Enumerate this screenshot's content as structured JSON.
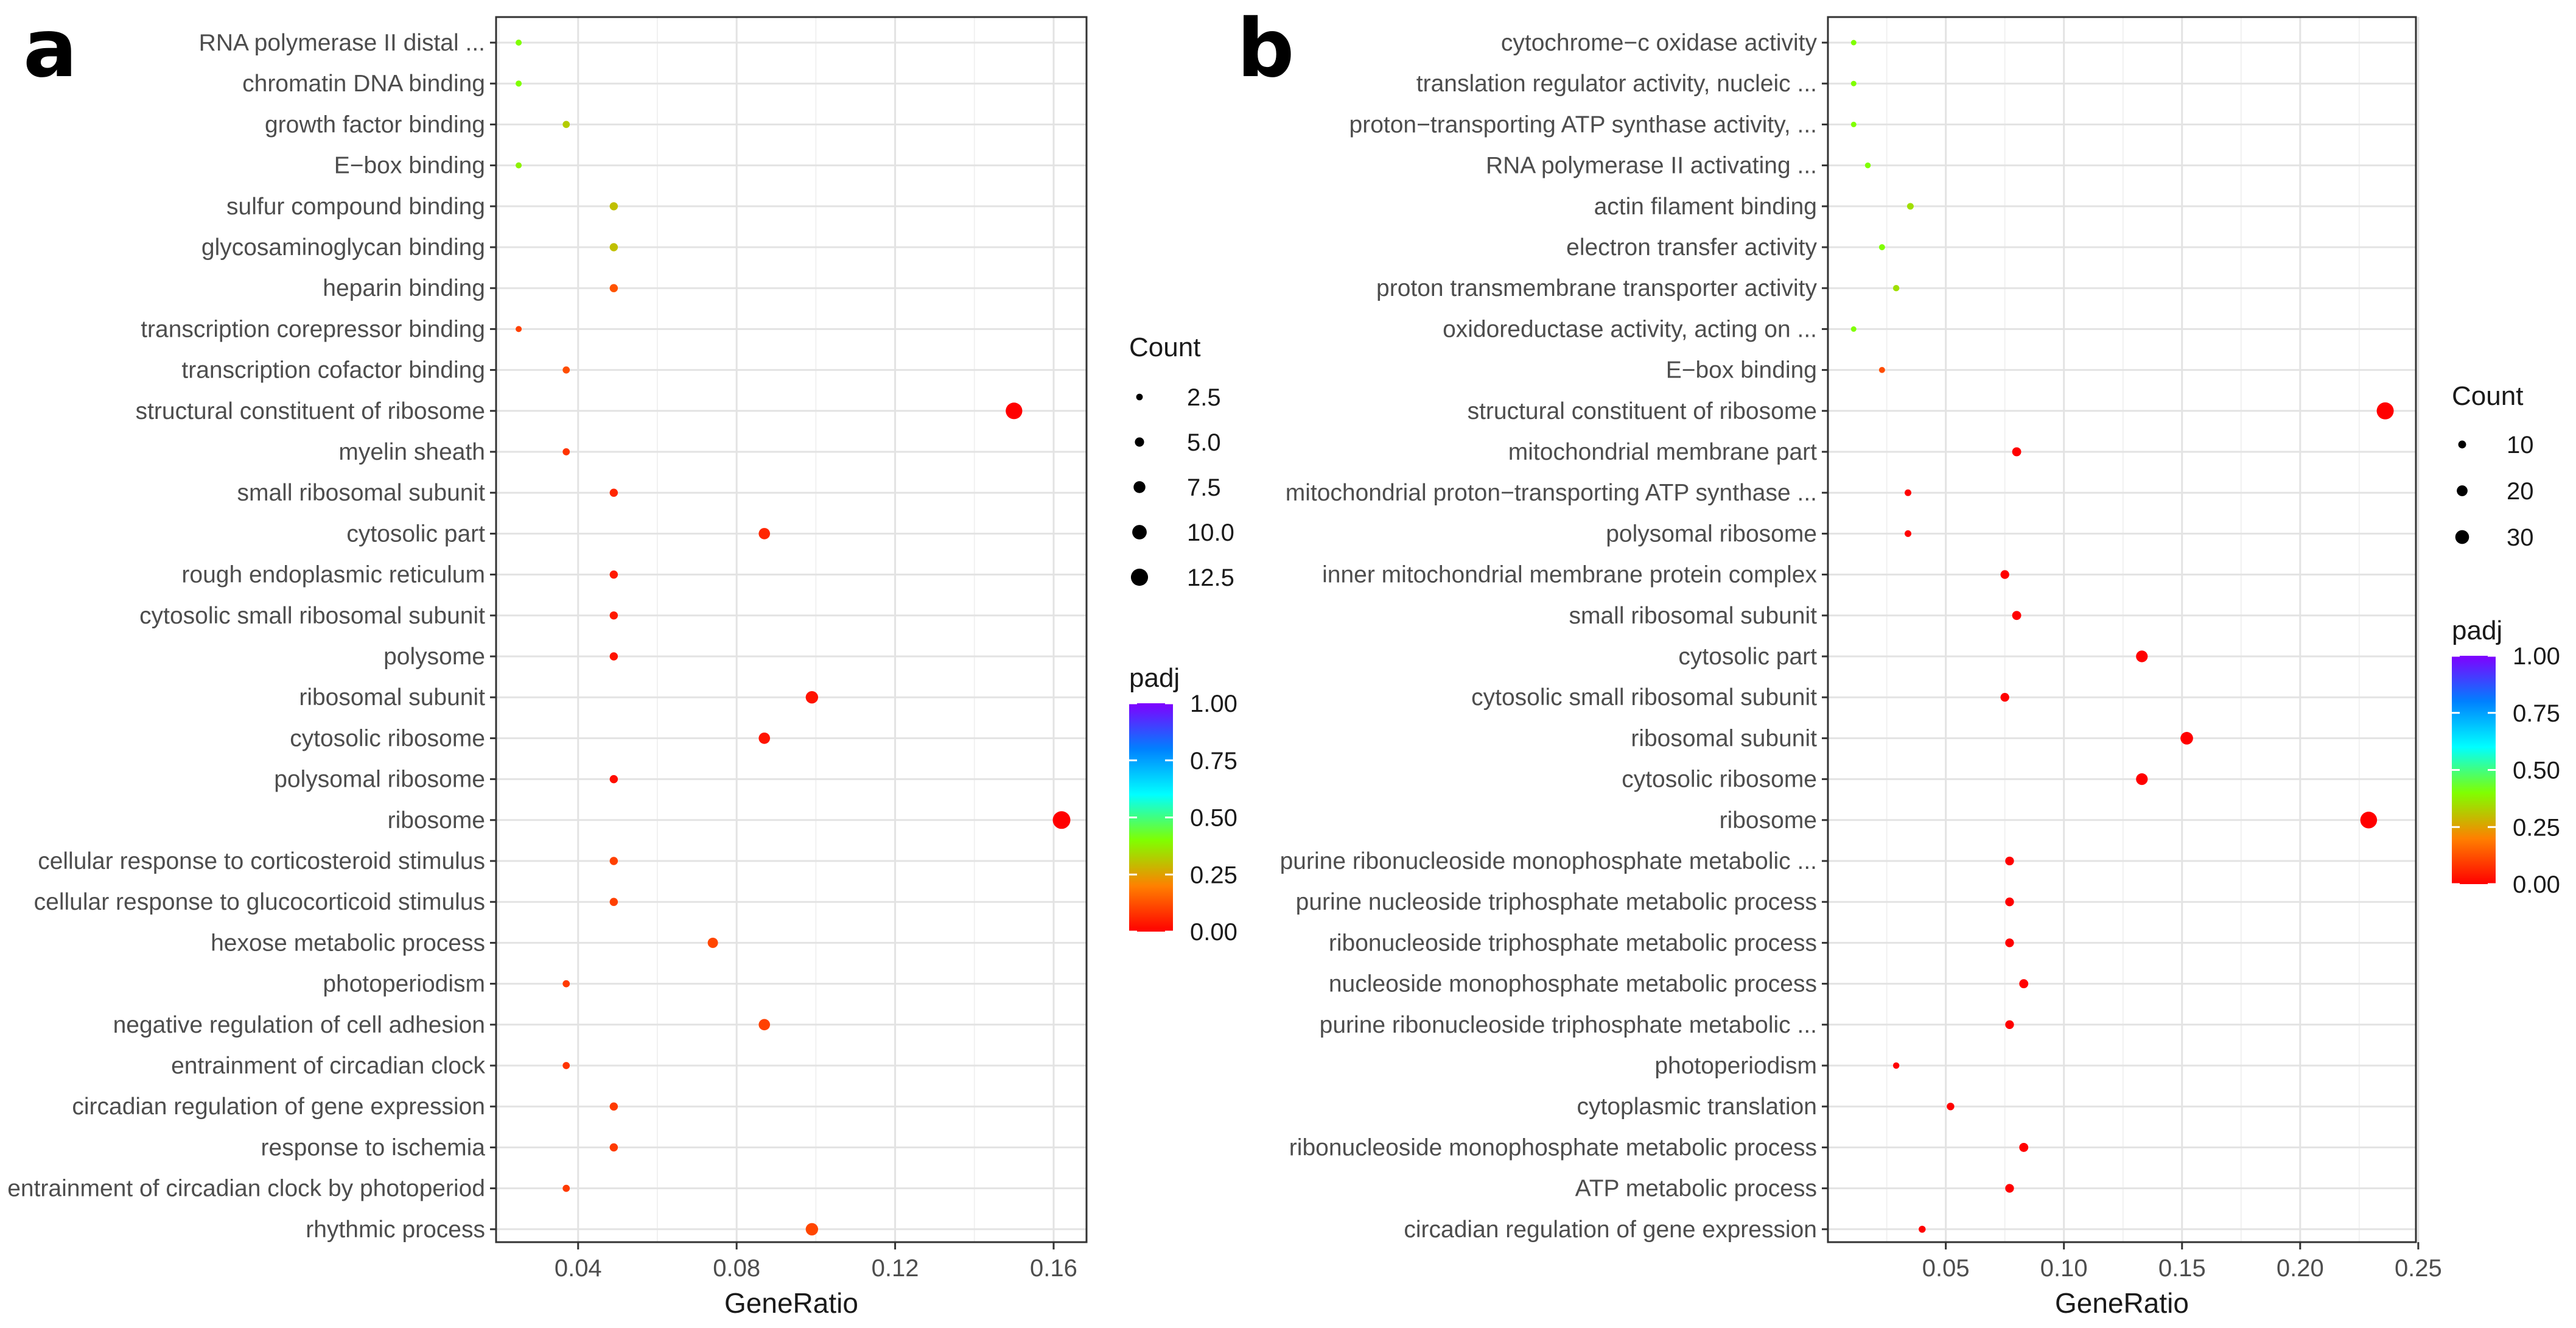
{
  "colors": {
    "padj_low": "#ff0000",
    "padj_q1": "#ff8000",
    "padj_q2": "#80ff00",
    "padj_mid": "#00ffff",
    "padj_q3": "#0080ff",
    "padj_high": "#8000ff"
  },
  "chart_data": [
    {
      "type": "scatter",
      "panel_label": "a",
      "xlabel": "GeneRatio",
      "xlim": [
        0.0193,
        0.1683
      ],
      "xticks": [
        0.04,
        0.08,
        0.12,
        0.16
      ],
      "xtick_labels": [
        "0.04",
        "0.08",
        "0.12",
        "0.16"
      ],
      "size_legend": {
        "title": "Count",
        "values": [
          2.5,
          5.0,
          7.5,
          10.0,
          12.5
        ],
        "labels": [
          "2.5",
          "5.0",
          "7.5",
          "10.0",
          "12.5"
        ]
      },
      "color_legend": {
        "title": "padj",
        "ticks": [
          1.0,
          0.75,
          0.5,
          0.25,
          0.0
        ],
        "labels": [
          "1.00",
          "0.75",
          "0.50",
          "0.25",
          "0.00"
        ]
      },
      "terms": [
        {
          "label": "RNA polymerase II distal ...",
          "gene_ratio": 0.025,
          "count": 2,
          "padj": 0.4
        },
        {
          "label": "chromatin DNA binding",
          "gene_ratio": 0.025,
          "count": 2,
          "padj": 0.4
        },
        {
          "label": "growth factor binding",
          "gene_ratio": 0.037,
          "count": 3,
          "padj": 0.32
        },
        {
          "label": "E−box binding",
          "gene_ratio": 0.025,
          "count": 2,
          "padj": 0.38
        },
        {
          "label": "sulfur compound binding",
          "gene_ratio": 0.049,
          "count": 4,
          "padj": 0.3
        },
        {
          "label": "glycosaminoglycan binding",
          "gene_ratio": 0.049,
          "count": 4,
          "padj": 0.3
        },
        {
          "label": "heparin binding",
          "gene_ratio": 0.049,
          "count": 4,
          "padj": 0.13
        },
        {
          "label": "transcription corepressor binding",
          "gene_ratio": 0.025,
          "count": 2,
          "padj": 0.1
        },
        {
          "label": "transcription cofactor binding",
          "gene_ratio": 0.037,
          "count": 3,
          "padj": 0.12
        },
        {
          "label": "structural constituent of ribosome",
          "gene_ratio": 0.15,
          "count": 12,
          "padj": 0.0
        },
        {
          "label": "myelin sheath",
          "gene_ratio": 0.037,
          "count": 3,
          "padj": 0.08
        },
        {
          "label": "small ribosomal subunit",
          "gene_ratio": 0.049,
          "count": 4,
          "padj": 0.06
        },
        {
          "label": "cytosolic part",
          "gene_ratio": 0.087,
          "count": 7,
          "padj": 0.06
        },
        {
          "label": "rough endoplasmic reticulum",
          "gene_ratio": 0.049,
          "count": 4,
          "padj": 0.04
        },
        {
          "label": "cytosolic small ribosomal subunit",
          "gene_ratio": 0.049,
          "count": 4,
          "padj": 0.04
        },
        {
          "label": "polysome",
          "gene_ratio": 0.049,
          "count": 4,
          "padj": 0.03
        },
        {
          "label": "ribosomal subunit",
          "gene_ratio": 0.099,
          "count": 8,
          "padj": 0.03
        },
        {
          "label": "cytosolic ribosome",
          "gene_ratio": 0.087,
          "count": 7,
          "padj": 0.03
        },
        {
          "label": "polysomal ribosome",
          "gene_ratio": 0.049,
          "count": 4,
          "padj": 0.02
        },
        {
          "label": "ribosome",
          "gene_ratio": 0.162,
          "count": 13,
          "padj": 0.0
        },
        {
          "label": "cellular response to corticosteroid stimulus",
          "gene_ratio": 0.049,
          "count": 4,
          "padj": 0.1
        },
        {
          "label": "cellular response to glucocorticoid stimulus",
          "gene_ratio": 0.049,
          "count": 4,
          "padj": 0.1
        },
        {
          "label": "hexose metabolic process",
          "gene_ratio": 0.074,
          "count": 6,
          "padj": 0.11
        },
        {
          "label": "photoperiodism",
          "gene_ratio": 0.037,
          "count": 3,
          "padj": 0.09
        },
        {
          "label": "negative regulation of cell adhesion",
          "gene_ratio": 0.087,
          "count": 7,
          "padj": 0.1
        },
        {
          "label": "entrainment of circadian clock",
          "gene_ratio": 0.037,
          "count": 3,
          "padj": 0.08
        },
        {
          "label": "circadian regulation of gene expression",
          "gene_ratio": 0.049,
          "count": 4,
          "padj": 0.09
        },
        {
          "label": "response to ischemia",
          "gene_ratio": 0.049,
          "count": 4,
          "padj": 0.09
        },
        {
          "label": "entrainment of circadian clock by photoperiod",
          "gene_ratio": 0.037,
          "count": 3,
          "padj": 0.09
        },
        {
          "label": "rhythmic process",
          "gene_ratio": 0.099,
          "count": 8,
          "padj": 0.11
        }
      ]
    },
    {
      "type": "scatter",
      "panel_label": "b",
      "xlabel": "GeneRatio",
      "xlim": [
        0.0001,
        0.249
      ],
      "xticks": [
        0.05,
        0.1,
        0.15,
        0.2,
        0.25
      ],
      "xtick_labels": [
        "0.05",
        "0.10",
        "0.15",
        "0.20",
        "0.25"
      ],
      "size_legend": {
        "title": "Count",
        "values": [
          10,
          20,
          30
        ],
        "labels": [
          "10",
          "20",
          "30"
        ]
      },
      "color_legend": {
        "title": "padj",
        "ticks": [
          1.0,
          0.75,
          0.5,
          0.25,
          0.0
        ],
        "labels": [
          "1.00",
          "0.75",
          "0.50",
          "0.25",
          "0.00"
        ]
      },
      "terms": [
        {
          "label": "cytochrome−c oxidase activity",
          "gene_ratio": 0.011,
          "count": 2,
          "padj": 0.4
        },
        {
          "label": "translation regulator activity, nucleic ...",
          "gene_ratio": 0.011,
          "count": 2,
          "padj": 0.4
        },
        {
          "label": "proton−transporting ATP synthase activity, ...",
          "gene_ratio": 0.011,
          "count": 2,
          "padj": 0.4
        },
        {
          "label": "RNA polymerase II activating ...",
          "gene_ratio": 0.017,
          "count": 3,
          "padj": 0.4
        },
        {
          "label": "actin filament binding",
          "gene_ratio": 0.035,
          "count": 6,
          "padj": 0.35
        },
        {
          "label": "electron transfer activity",
          "gene_ratio": 0.023,
          "count": 4,
          "padj": 0.4
        },
        {
          "label": "proton transmembrane transporter activity",
          "gene_ratio": 0.029,
          "count": 5,
          "padj": 0.35
        },
        {
          "label": "oxidoreductase activity, acting on ...",
          "gene_ratio": 0.011,
          "count": 2,
          "padj": 0.4
        },
        {
          "label": "E−box binding",
          "gene_ratio": 0.023,
          "count": 4,
          "padj": 0.12
        },
        {
          "label": "structural constituent of ribosome",
          "gene_ratio": 0.236,
          "count": 41,
          "padj": 0.0
        },
        {
          "label": "mitochondrial membrane part",
          "gene_ratio": 0.08,
          "count": 14,
          "padj": 0.0
        },
        {
          "label": "mitochondrial proton−transporting ATP synthase ...",
          "gene_ratio": 0.034,
          "count": 6,
          "padj": 0.0
        },
        {
          "label": "polysomal ribosome",
          "gene_ratio": 0.034,
          "count": 6,
          "padj": 0.0
        },
        {
          "label": "inner mitochondrial membrane protein complex",
          "gene_ratio": 0.075,
          "count": 13,
          "padj": 0.0
        },
        {
          "label": "small ribosomal subunit",
          "gene_ratio": 0.08,
          "count": 14,
          "padj": 0.0
        },
        {
          "label": "cytosolic part",
          "gene_ratio": 0.133,
          "count": 23,
          "padj": 0.0
        },
        {
          "label": "cytosolic small ribosomal subunit",
          "gene_ratio": 0.075,
          "count": 13,
          "padj": 0.0
        },
        {
          "label": "ribosomal subunit",
          "gene_ratio": 0.152,
          "count": 26,
          "padj": 0.0
        },
        {
          "label": "cytosolic ribosome",
          "gene_ratio": 0.133,
          "count": 23,
          "padj": 0.0
        },
        {
          "label": "ribosome",
          "gene_ratio": 0.229,
          "count": 40,
          "padj": 0.0
        },
        {
          "label": "purine ribonucleoside monophosphate metabolic ...",
          "gene_ratio": 0.077,
          "count": 13,
          "padj": 0.0
        },
        {
          "label": "purine nucleoside triphosphate metabolic process",
          "gene_ratio": 0.077,
          "count": 13,
          "padj": 0.0
        },
        {
          "label": "ribonucleoside triphosphate metabolic process",
          "gene_ratio": 0.077,
          "count": 13,
          "padj": 0.0
        },
        {
          "label": "nucleoside monophosphate metabolic process",
          "gene_ratio": 0.083,
          "count": 14,
          "padj": 0.0
        },
        {
          "label": "purine ribonucleoside triphosphate metabolic ...",
          "gene_ratio": 0.077,
          "count": 13,
          "padj": 0.0
        },
        {
          "label": "photoperiodism",
          "gene_ratio": 0.029,
          "count": 5,
          "padj": 0.0
        },
        {
          "label": "cytoplasmic translation",
          "gene_ratio": 0.052,
          "count": 9,
          "padj": 0.0
        },
        {
          "label": "ribonucleoside monophosphate metabolic process",
          "gene_ratio": 0.083,
          "count": 14,
          "padj": 0.0
        },
        {
          "label": "ATP metabolic process",
          "gene_ratio": 0.077,
          "count": 13,
          "padj": 0.0
        },
        {
          "label": "circadian regulation of gene expression",
          "gene_ratio": 0.04,
          "count": 7,
          "padj": 0.0
        }
      ]
    }
  ]
}
